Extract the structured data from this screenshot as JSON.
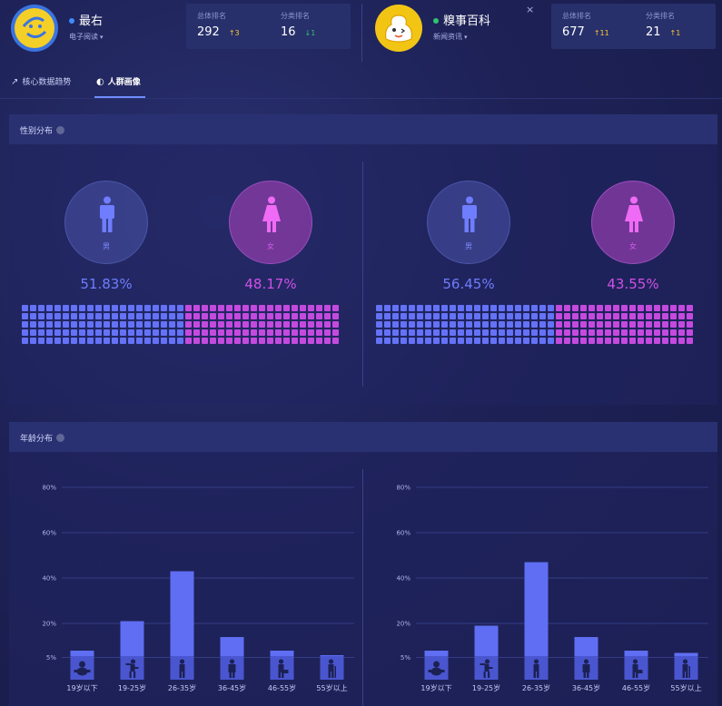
{
  "apps": [
    {
      "name": "最右",
      "category": "电子阅读",
      "status_color": "#3f8cff",
      "logo_color": "#3a74e0",
      "logo_icon": "zuiyou-logo-icon",
      "overall_rank_label": "总体排名",
      "overall_rank": "292",
      "overall_delta": "3",
      "overall_delta_dir": "up",
      "category_rank_label": "分类排名",
      "category_rank": "16",
      "category_delta": "1",
      "category_delta_dir": "down"
    },
    {
      "name": "糗事百科",
      "category": "新闻资讯",
      "status_color": "#2ec46f",
      "logo_color": "#f2c515",
      "logo_icon": "qiushibaike-logo-icon",
      "overall_rank_label": "总体排名",
      "overall_rank": "677",
      "overall_delta": "11",
      "overall_delta_dir": "up",
      "category_rank_label": "分类排名",
      "category_rank": "21",
      "category_delta": "1",
      "category_delta_dir": "up",
      "close_label": "×"
    }
  ],
  "tabs": [
    {
      "label": "核心数据趋势",
      "icon": "trend-icon"
    },
    {
      "label": "人群画像",
      "icon": "portrait-icon",
      "active": true
    }
  ],
  "gender_section": {
    "title": "性别分布",
    "male_label": "男",
    "female_label": "女",
    "apps": [
      {
        "male_pct": "51.83%",
        "female_pct": "48.17%",
        "male_fraction": 0.5183
      },
      {
        "male_pct": "56.45%",
        "female_pct": "43.55%",
        "male_fraction": 0.5645
      }
    ],
    "colors": {
      "male": "#6472f6",
      "female": "#c44ade"
    }
  },
  "age_section": {
    "title": "年龄分布"
  },
  "chart_data": [
    {
      "type": "bar",
      "title": "年龄分布 - 最右",
      "categories": [
        "19岁以下",
        "19-25岁",
        "26-35岁",
        "36-45岁",
        "46-55岁",
        "55岁以上"
      ],
      "values": [
        8,
        21,
        43,
        14,
        8,
        6
      ],
      "ytick_labels": [
        "5%",
        "20%",
        "40%",
        "60%",
        "80%"
      ],
      "ylim": [
        0,
        80
      ],
      "grid": true,
      "icons": [
        "baby-icon",
        "youth-icon",
        "adult-icon",
        "middle-age-icon",
        "senior-icon",
        "elder-icon"
      ]
    },
    {
      "type": "bar",
      "title": "年龄分布 - 糗事百科",
      "categories": [
        "19岁以下",
        "19-25岁",
        "26-35岁",
        "36-45岁",
        "46-55岁",
        "55岁以上"
      ],
      "values": [
        8,
        19,
        47,
        14,
        8,
        7
      ],
      "ytick_labels": [
        "5%",
        "20%",
        "40%",
        "60%",
        "80%"
      ],
      "ylim": [
        0,
        80
      ],
      "grid": true,
      "icons": [
        "baby-icon",
        "youth-icon",
        "adult-icon",
        "middle-age-icon",
        "senior-icon",
        "elder-icon"
      ]
    }
  ]
}
